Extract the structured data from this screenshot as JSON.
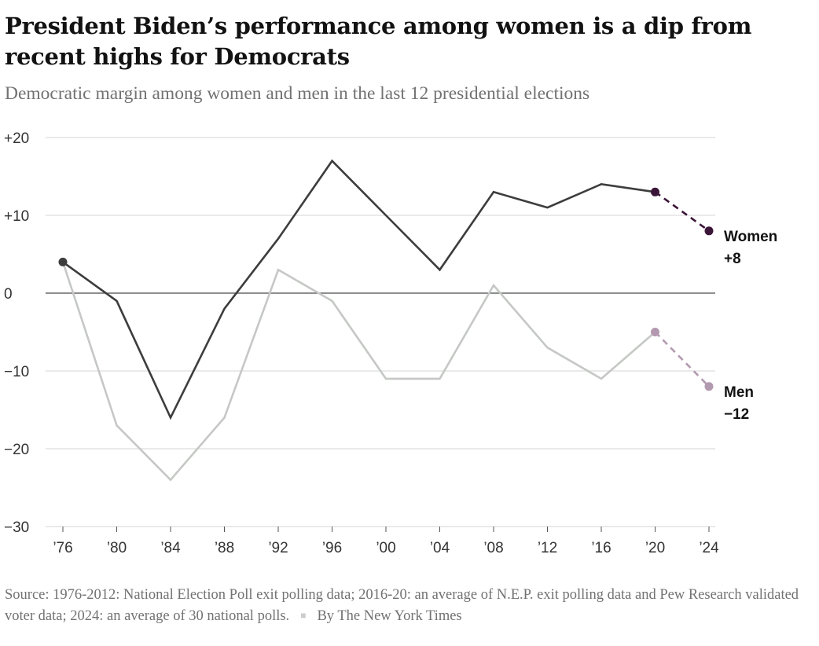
{
  "header": {
    "title": "President Biden’s performance among women is a dip from recent highs for Democrats",
    "subtitle": "Democratic margin among women and men in the last 12 presidential elections"
  },
  "chart_data": {
    "type": "line",
    "x": [
      "’76",
      "’80",
      "’84",
      "’88",
      "’92",
      "’96",
      "’00",
      "’04",
      "’08",
      "’12",
      "’16",
      "’20",
      "’24"
    ],
    "yticks": [
      "+20",
      "+10",
      "0",
      "−10",
      "−20",
      "−30"
    ],
    "ytick_values": [
      20,
      10,
      0,
      -10,
      -20,
      -30
    ],
    "ylim": [
      -30,
      20
    ],
    "grid": true,
    "series": [
      {
        "name": "Women",
        "end_value_label": "+8",
        "values": [
          4,
          -1,
          -16,
          -2,
          7,
          17,
          10,
          3,
          13,
          11,
          14,
          13,
          8
        ],
        "color": "#3d3d3d",
        "projection_color": "#3b1538",
        "projection_from_index": 11
      },
      {
        "name": "Men",
        "end_value_label": "−12",
        "values": [
          4,
          -17,
          -24,
          -16,
          3,
          -1,
          -11,
          -11,
          1,
          -7,
          -11,
          -5,
          -12
        ],
        "color": "#c5c8c5",
        "projection_color": "#b399b0",
        "projection_from_index": 11
      }
    ]
  },
  "footer": {
    "source": "Source: 1976-2012: National Election Poll exit polling data; 2016-20: an average of N.E.P. exit polling data and Pew Research validated voter data; 2024: an average of 30 national polls.",
    "separator": "■",
    "byline": "By The New York Times"
  }
}
